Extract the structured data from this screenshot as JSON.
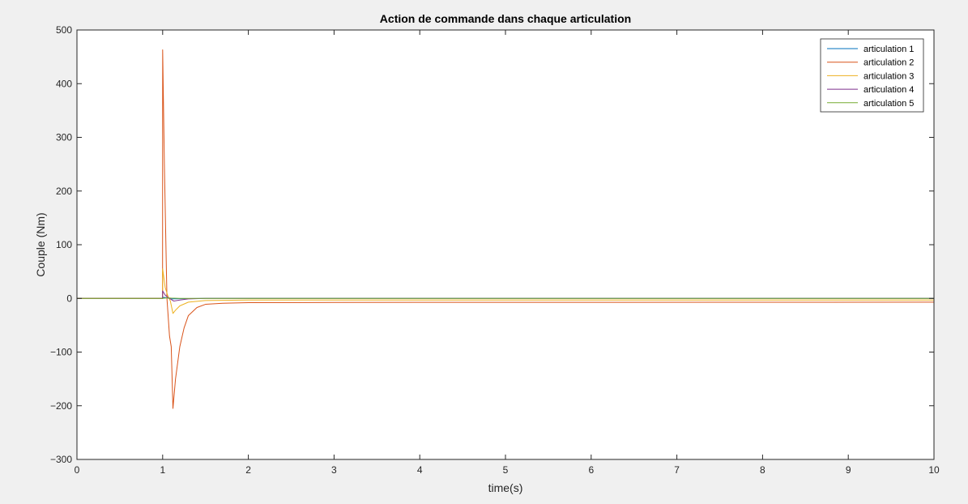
{
  "chart_data": {
    "type": "line",
    "title": "Action de commande dans chaque articulation",
    "xlabel": "time(s)",
    "ylabel": "Couple (Nm)",
    "xlim": [
      0,
      10
    ],
    "ylim": [
      -300,
      500
    ],
    "xticks": [
      0,
      1,
      2,
      3,
      4,
      5,
      6,
      7,
      8,
      9,
      10
    ],
    "yticks": [
      -300,
      -200,
      -100,
      0,
      100,
      200,
      300,
      400,
      500
    ],
    "grid": false,
    "legend_position": "top-right",
    "series": [
      {
        "name": "articulation 1",
        "color": "#0072bd",
        "x": [
          0,
          1.0,
          1.01,
          1.05,
          1.1,
          1.2,
          1.5,
          10
        ],
        "y": [
          0,
          0,
          2,
          1,
          -1,
          -0.5,
          0,
          0
        ]
      },
      {
        "name": "articulation 2",
        "color": "#d95319",
        "x": [
          0,
          0.999,
          1.0,
          1.02,
          1.05,
          1.08,
          1.1,
          1.12,
          1.15,
          1.2,
          1.25,
          1.3,
          1.4,
          1.5,
          1.7,
          2,
          3,
          10
        ],
        "y": [
          0,
          0,
          463,
          250,
          0,
          -70,
          -90,
          -205,
          -150,
          -90,
          -55,
          -32,
          -17,
          -11,
          -9,
          -8,
          -7.5,
          -7
        ]
      },
      {
        "name": "articulation 3",
        "color": "#edb120",
        "x": [
          0,
          0.999,
          1.0,
          1.03,
          1.06,
          1.09,
          1.12,
          1.15,
          1.2,
          1.3,
          1.5,
          2,
          10
        ],
        "y": [
          0,
          0,
          55,
          20,
          5,
          -5,
          -28,
          -22,
          -14,
          -7,
          -4,
          -3,
          -3
        ]
      },
      {
        "name": "articulation 4",
        "color": "#7e2f8e",
        "x": [
          0,
          0.999,
          1.0,
          1.03,
          1.06,
          1.1,
          1.13,
          1.2,
          1.3,
          1.5,
          10
        ],
        "y": [
          0,
          0,
          14,
          6,
          2,
          -2,
          -5,
          -3,
          -1,
          0,
          0
        ]
      },
      {
        "name": "articulation 5",
        "color": "#77ac30",
        "x": [
          0,
          1.0,
          1.05,
          1.1,
          1.2,
          10
        ],
        "y": [
          0,
          0,
          1,
          0.5,
          0,
          0
        ]
      }
    ]
  }
}
